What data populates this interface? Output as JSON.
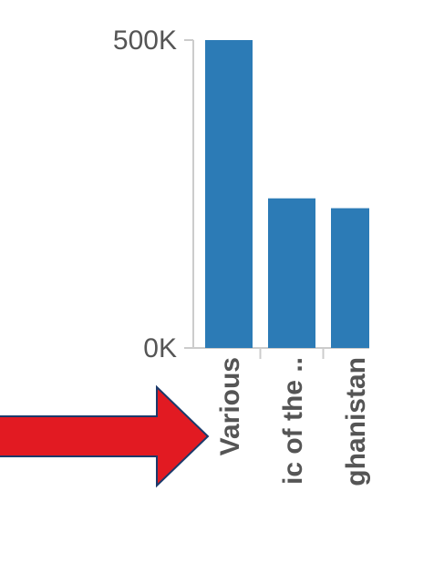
{
  "chart_data": {
    "type": "bar",
    "categories": [
      "Various",
      "ic of the ..",
      "ghanistan"
    ],
    "values": [
      500000,
      243000,
      227000
    ],
    "ylim": [
      0,
      500000
    ],
    "yticks": [
      {
        "value": 0,
        "label": "0K"
      },
      {
        "value": 500000,
        "label": "500K"
      }
    ],
    "bar_color": "#2c7bb6",
    "grid": false
  },
  "annotation": {
    "type": "arrow",
    "direction": "right",
    "color": "#e21a22"
  }
}
